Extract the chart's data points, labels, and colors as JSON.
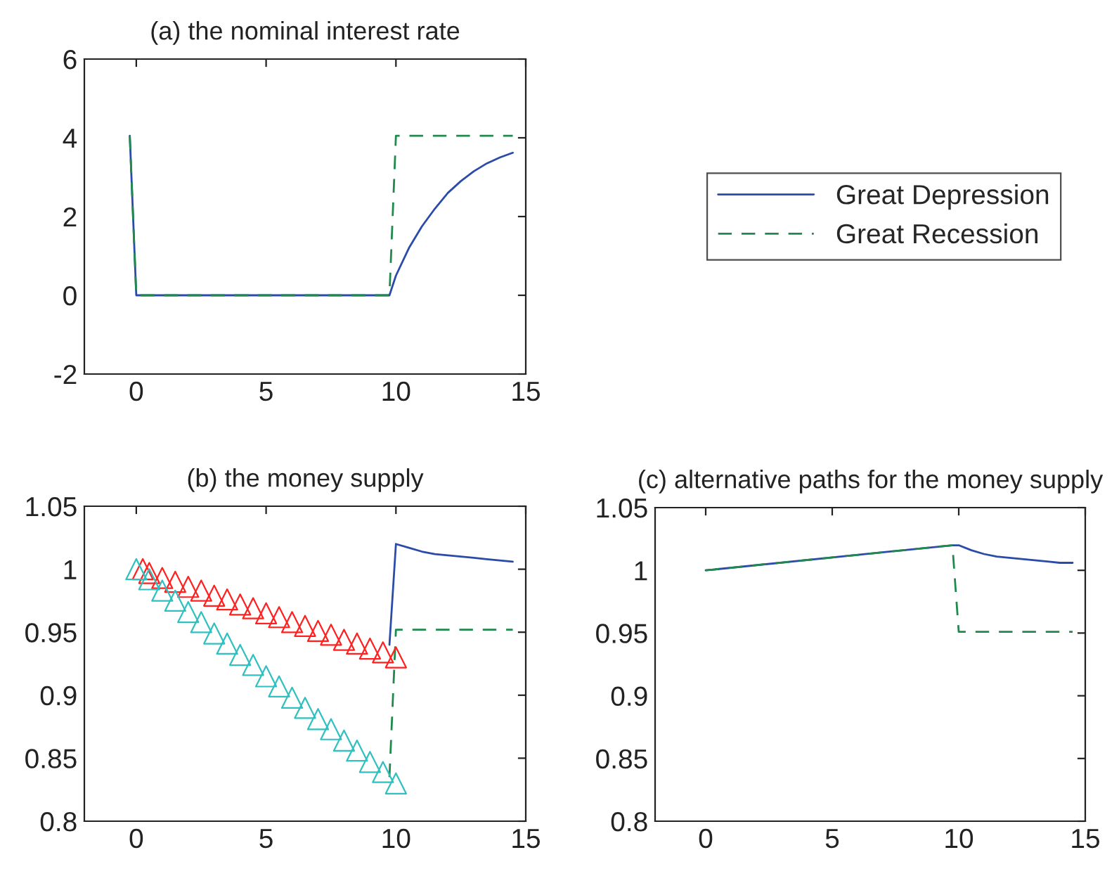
{
  "chart_data": [
    {
      "type": "line",
      "title": "(a) the nominal interest rate",
      "xlim": [
        -2,
        15
      ],
      "ylim": [
        -2,
        6
      ],
      "xticks": [
        0,
        5,
        10,
        15
      ],
      "yticks": [
        -2,
        0,
        2,
        4,
        6
      ],
      "grid": false,
      "legend": "right",
      "series": [
        {
          "name": "Great Depression",
          "color": "#2b4ba8",
          "line_style": "solid",
          "x": [
            -0.25,
            0,
            9.75,
            10,
            10.5,
            11,
            11.5,
            12,
            12.5,
            13,
            13.5,
            14,
            14.5
          ],
          "values": [
            4.05,
            0,
            0,
            0.5,
            1.2,
            1.75,
            2.2,
            2.6,
            2.9,
            3.15,
            3.35,
            3.5,
            3.62
          ]
        },
        {
          "name": "Great Recession",
          "color": "#1f8a4c",
          "line_style": "dashed",
          "x": [
            -0.25,
            0,
            9.75,
            10,
            14.5
          ],
          "values": [
            4.05,
            0,
            0,
            4.05,
            4.05
          ]
        }
      ]
    },
    {
      "type": "line",
      "title": "(b) the money supply",
      "xlim": [
        -2,
        15
      ],
      "ylim": [
        0.8,
        1.05
      ],
      "xticks": [
        0,
        5,
        10,
        15
      ],
      "yticks": [
        {
          "value": 0.8,
          "label": "0.8"
        },
        0.85,
        {
          "value": 0.9,
          "label": "0.9"
        },
        0.95,
        {
          "value": 1,
          "label": "1"
        },
        1.05
      ],
      "grid": false,
      "series": [
        {
          "color": "#2b4ba8",
          "line_style": "solid",
          "x": [
            9.75,
            10,
            10.5,
            11,
            11.5,
            12,
            12.5,
            13,
            13.5,
            14,
            14.5
          ],
          "values": [
            0.94,
            1.02,
            1.017,
            1.014,
            1.012,
            1.011,
            1.01,
            1.009,
            1.008,
            1.007,
            1.006
          ]
        },
        {
          "color": "#1f8a4c",
          "line_style": "dashed",
          "x": [
            9.75,
            10,
            14.5
          ],
          "values": [
            0.835,
            0.952,
            0.952
          ]
        },
        {
          "type": "scatter",
          "marker": "triangle",
          "color": "#ff2020",
          "x": [
            0.25,
            0.5,
            1,
            1.5,
            2,
            2.5,
            3,
            3.5,
            4,
            4.5,
            5,
            5.5,
            6,
            6.5,
            7,
            7.5,
            8,
            8.5,
            9,
            9.5,
            10
          ],
          "values": [
            1.0,
            0.997,
            0.993,
            0.99,
            0.986,
            0.983,
            0.979,
            0.976,
            0.972,
            0.969,
            0.965,
            0.962,
            0.958,
            0.955,
            0.951,
            0.948,
            0.944,
            0.941,
            0.937,
            0.934,
            0.93
          ]
        },
        {
          "type": "scatter",
          "marker": "triangle",
          "color": "#30c0c0",
          "x": [
            0,
            0.5,
            1,
            1.5,
            2,
            2.5,
            3,
            3.5,
            4,
            4.5,
            5,
            5.5,
            6,
            6.5,
            7,
            7.5,
            8,
            8.5,
            9,
            9.5,
            10
          ],
          "values": [
            1.0,
            0.992,
            0.983,
            0.975,
            0.966,
            0.958,
            0.949,
            0.941,
            0.932,
            0.924,
            0.915,
            0.907,
            0.898,
            0.89,
            0.881,
            0.873,
            0.864,
            0.856,
            0.847,
            0.839,
            0.83
          ]
        }
      ]
    },
    {
      "type": "line",
      "title": "(c) alternative paths for the money supply",
      "xlim": [
        -2,
        15
      ],
      "ylim": [
        0.8,
        1.05
      ],
      "xticks": [
        0,
        5,
        10,
        15
      ],
      "yticks": [
        {
          "value": 0.8,
          "label": "0.8"
        },
        0.85,
        {
          "value": 0.9,
          "label": "0.9"
        },
        0.95,
        {
          "value": 1,
          "label": "1"
        },
        1.05
      ],
      "grid": false,
      "series": [
        {
          "color": "#2b4ba8",
          "line_style": "solid",
          "x": [
            0,
            9.75,
            10,
            10.5,
            11,
            11.5,
            12,
            12.5,
            13,
            13.5,
            14,
            14.5
          ],
          "values": [
            1.0,
            1.02,
            1.02,
            1.016,
            1.013,
            1.011,
            1.01,
            1.009,
            1.008,
            1.007,
            1.006,
            1.006
          ]
        },
        {
          "color": "#1f8a4c",
          "line_style": "dashed",
          "x": [
            0,
            9.75,
            10,
            14.5
          ],
          "values": [
            1.0,
            1.02,
            0.951,
            0.951
          ]
        }
      ]
    }
  ]
}
